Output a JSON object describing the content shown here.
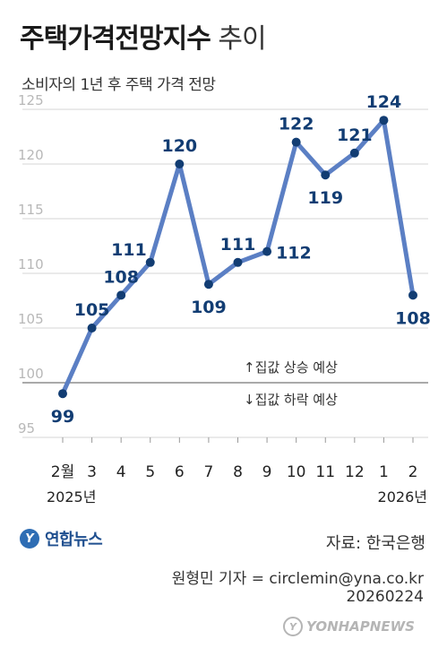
{
  "header": {
    "title_bold": "주택가격전망지수",
    "title_light": "추이",
    "subtitle": "소비자의 1년 후 주택 가격 전망"
  },
  "chart_data": {
    "type": "line",
    "title": "주택가격전망지수 추이",
    "subtitle": "소비자의 1년 후 주택 가격 전망",
    "categories": [
      "2월",
      "3",
      "4",
      "5",
      "6",
      "7",
      "8",
      "9",
      "10",
      "11",
      "12",
      "1",
      "2"
    ],
    "year_labels": [
      "2025년",
      "2026년"
    ],
    "values": [
      99,
      105,
      108,
      111,
      120,
      109,
      111,
      112,
      122,
      119,
      121,
      124,
      108
    ],
    "ylim": [
      95,
      125
    ],
    "yticks": [
      95,
      100,
      105,
      110,
      115,
      120,
      125
    ],
    "grid": true,
    "reference_line": 100,
    "annotations": {
      "above": "↑집값 상승 예상",
      "below": "↓집값 하락 예상"
    },
    "colors": {
      "line": "#5b7fc4",
      "marker": "#123d73",
      "label": "#123d73",
      "grid": "#d6d6d6",
      "baseline": "#777777"
    }
  },
  "footer": {
    "logo_text": "연합뉴스",
    "source": "자료: 한국은행",
    "credit_line1": "원형민 기자 = circlemin@yna.co.kr",
    "credit_line2": "20260224",
    "watermark": "YONHAPNEWS"
  }
}
